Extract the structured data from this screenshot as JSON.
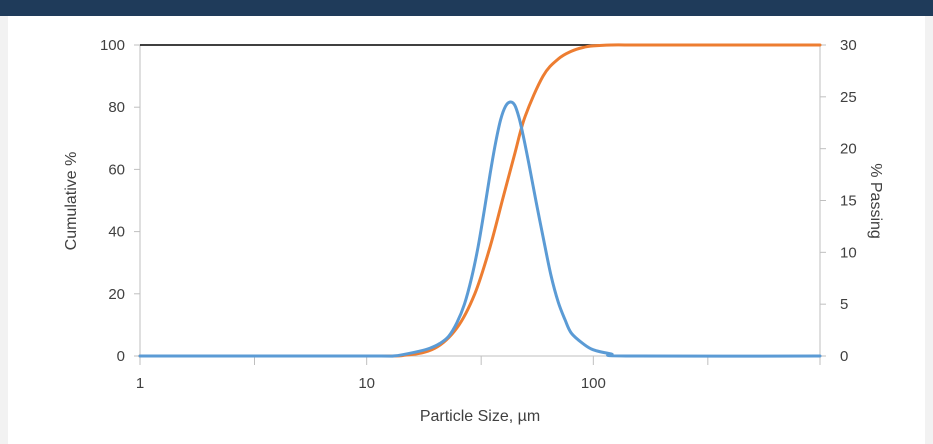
{
  "chart_data": {
    "type": "line",
    "xlabel": "Particle Size, µm",
    "ylabel": "Cumulative %",
    "y2label": "% Passing",
    "x_scale": "log",
    "xlim": [
      1,
      1000
    ],
    "ylim": [
      0,
      100
    ],
    "y2lim": [
      0,
      30
    ],
    "x_ticks": [
      {
        "value": 1,
        "label": "1"
      },
      {
        "value": 10,
        "label": "10"
      },
      {
        "value": 100,
        "label": "100"
      }
    ],
    "x_minor_ticks": [
      3.2,
      32,
      320
    ],
    "y_ticks": [
      {
        "value": 0,
        "label": "0"
      },
      {
        "value": 20,
        "label": "20"
      },
      {
        "value": 40,
        "label": "40"
      },
      {
        "value": 60,
        "label": "60"
      },
      {
        "value": 80,
        "label": "80"
      },
      {
        "value": 100,
        "label": "100"
      }
    ],
    "y2_ticks": [
      {
        "value": 0,
        "label": "0"
      },
      {
        "value": 5,
        "label": "5"
      },
      {
        "value": 10,
        "label": "10"
      },
      {
        "value": 15,
        "label": "15"
      },
      {
        "value": 20,
        "label": "20"
      },
      {
        "value": 25,
        "label": "25"
      },
      {
        "value": 30,
        "label": "30"
      }
    ],
    "grid": false,
    "legend": "none",
    "series": [
      {
        "axis": "left",
        "color": "#ed7d31",
        "x": [
          1,
          10,
          15,
          20,
          25,
          30,
          35,
          40,
          45,
          50,
          60,
          70,
          80,
          90,
          100,
          120,
          150,
          200,
          1000
        ],
        "y": [
          0,
          0,
          0.3,
          2.5,
          9,
          20,
          35,
          51,
          65,
          77,
          90,
          95.5,
          98,
          99.2,
          99.7,
          100,
          100,
          100,
          100
        ]
      },
      {
        "axis": "right",
        "color": "#5b9bd5",
        "x": [
          1,
          10,
          13,
          15,
          17,
          19,
          21,
          23,
          25,
          27,
          29,
          31,
          33,
          35,
          37,
          39,
          41,
          43,
          45,
          47,
          49,
          52,
          56,
          60,
          65,
          70,
          75,
          80,
          90,
          100,
          120,
          140,
          1000
        ],
        "y": [
          0,
          0,
          0,
          0.2,
          0.45,
          0.75,
          1.2,
          1.9,
          3.2,
          5,
          7.5,
          10.5,
          14,
          17.5,
          20.5,
          22.8,
          24.1,
          24.5,
          24.2,
          23,
          21.3,
          18.5,
          14.8,
          11.5,
          7.8,
          5.2,
          3.5,
          2.2,
          1.2,
          0.6,
          0.2,
          0,
          0
        ]
      }
    ]
  }
}
